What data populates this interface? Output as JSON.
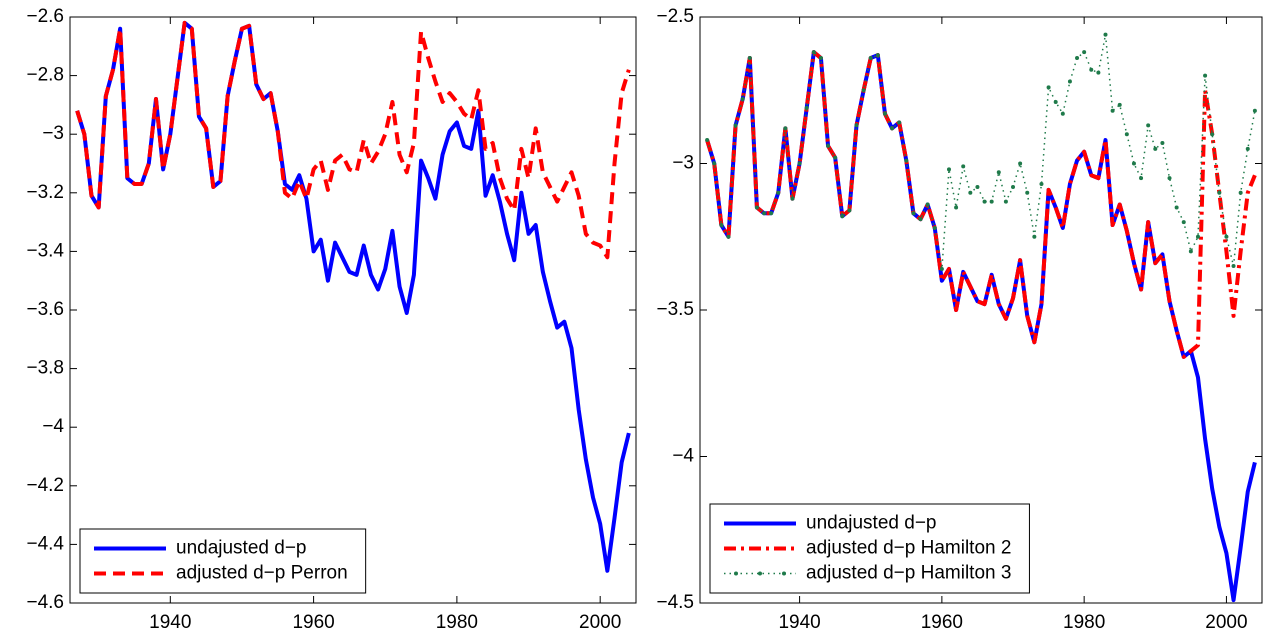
{
  "chart_data": [
    {
      "type": "line",
      "x": [
        1927,
        1928,
        1929,
        1930,
        1931,
        1932,
        1933,
        1934,
        1935,
        1936,
        1937,
        1938,
        1939,
        1940,
        1941,
        1942,
        1943,
        1944,
        1945,
        1946,
        1947,
        1948,
        1949,
        1950,
        1951,
        1952,
        1953,
        1954,
        1955,
        1956,
        1957,
        1958,
        1959,
        1960,
        1961,
        1962,
        1963,
        1964,
        1965,
        1966,
        1967,
        1968,
        1969,
        1970,
        1971,
        1972,
        1973,
        1974,
        1975,
        1976,
        1977,
        1978,
        1979,
        1980,
        1981,
        1982,
        1983,
        1984,
        1985,
        1986,
        1987,
        1988,
        1989,
        1990,
        1991,
        1992,
        1993,
        1994,
        1995,
        1996,
        1997,
        1998,
        1999,
        2000,
        2001,
        2002,
        2003,
        2004
      ],
      "xlim": [
        1926,
        2005
      ],
      "xticks": [
        1940,
        1960,
        1980,
        2000
      ],
      "ylim": [
        -4.6,
        -2.6
      ],
      "yticks": [
        {
          "value": -2.6,
          "label": "−2.6"
        },
        {
          "value": -2.8,
          "label": "−2.8"
        },
        {
          "value": -3,
          "label": "−3"
        },
        {
          "value": -3.2,
          "label": "−3.2"
        },
        {
          "value": -3.4,
          "label": "−3.4"
        },
        {
          "value": -3.6,
          "label": "−3.6"
        },
        {
          "value": -3.8,
          "label": "−3.8"
        },
        {
          "value": -4,
          "label": "−4"
        },
        {
          "value": -4.2,
          "label": "−4.2"
        },
        {
          "value": -4.4,
          "label": "−4.4"
        },
        {
          "value": -4.6,
          "label": "−4.6"
        }
      ],
      "legend": "lower left",
      "series": [
        {
          "name": "undajusted d−p",
          "color": "#0000ff",
          "linestyle": "solid",
          "values": [
            -2.92,
            -3.0,
            -3.21,
            -3.25,
            -2.87,
            -2.78,
            -2.64,
            -3.15,
            -3.17,
            -3.17,
            -3.1,
            -2.88,
            -3.12,
            -3.0,
            -2.81,
            -2.62,
            -2.64,
            -2.94,
            -2.98,
            -3.18,
            -3.16,
            -2.87,
            -2.75,
            -2.64,
            -2.63,
            -2.83,
            -2.88,
            -2.86,
            -2.99,
            -3.17,
            -3.19,
            -3.14,
            -3.22,
            -3.4,
            -3.36,
            -3.5,
            -3.37,
            -3.42,
            -3.47,
            -3.48,
            -3.38,
            -3.48,
            -3.53,
            -3.46,
            -3.33,
            -3.52,
            -3.61,
            -3.48,
            -3.09,
            -3.15,
            -3.22,
            -3.07,
            -2.99,
            -2.96,
            -3.04,
            -3.05,
            -2.92,
            -3.21,
            -3.14,
            -3.23,
            -3.34,
            -3.43,
            -3.2,
            -3.34,
            -3.31,
            -3.47,
            -3.57,
            -3.66,
            -3.64,
            -3.73,
            -3.94,
            -4.11,
            -4.24,
            -4.33,
            -4.49,
            -4.31,
            -4.12,
            -4.02
          ]
        },
        {
          "name": "adjusted d−p Perron",
          "color": "#ff0000",
          "linestyle": "dashed",
          "values": [
            -2.92,
            -3.0,
            -3.21,
            -3.25,
            -2.87,
            -2.78,
            -2.64,
            -3.15,
            -3.17,
            -3.17,
            -3.1,
            -2.88,
            -3.12,
            -3.0,
            -2.81,
            -2.62,
            -2.64,
            -2.94,
            -2.98,
            -3.18,
            -3.16,
            -2.87,
            -2.75,
            -2.64,
            -2.63,
            -2.83,
            -2.88,
            -2.86,
            -2.99,
            -3.2,
            -3.22,
            -3.16,
            -3.22,
            -3.12,
            -3.09,
            -3.19,
            -3.09,
            -3.07,
            -3.12,
            -3.13,
            -3.02,
            -3.1,
            -3.06,
            -3.0,
            -2.89,
            -3.07,
            -3.13,
            -3.03,
            -2.65,
            -2.74,
            -2.82,
            -2.89,
            -2.86,
            -2.89,
            -2.93,
            -2.95,
            -2.85,
            -3.05,
            -3.03,
            -3.15,
            -3.22,
            -3.26,
            -3.05,
            -3.15,
            -2.98,
            -3.13,
            -3.18,
            -3.23,
            -3.18,
            -3.13,
            -3.21,
            -3.34,
            -3.37,
            -3.38,
            -3.42,
            -3.1,
            -2.86,
            -2.78
          ]
        }
      ]
    },
    {
      "type": "line",
      "x": [
        1927,
        1928,
        1929,
        1930,
        1931,
        1932,
        1933,
        1934,
        1935,
        1936,
        1937,
        1938,
        1939,
        1940,
        1941,
        1942,
        1943,
        1944,
        1945,
        1946,
        1947,
        1948,
        1949,
        1950,
        1951,
        1952,
        1953,
        1954,
        1955,
        1956,
        1957,
        1958,
        1959,
        1960,
        1961,
        1962,
        1963,
        1964,
        1965,
        1966,
        1967,
        1968,
        1969,
        1970,
        1971,
        1972,
        1973,
        1974,
        1975,
        1976,
        1977,
        1978,
        1979,
        1980,
        1981,
        1982,
        1983,
        1984,
        1985,
        1986,
        1987,
        1988,
        1989,
        1990,
        1991,
        1992,
        1993,
        1994,
        1995,
        1996,
        1997,
        1998,
        1999,
        2000,
        2001,
        2002,
        2003,
        2004
      ],
      "xlim": [
        1926,
        2005
      ],
      "xticks": [
        1940,
        1960,
        1980,
        2000
      ],
      "ylim": [
        -4.5,
        -2.5
      ],
      "yticks": [
        {
          "value": -2.5,
          "label": "−2.5"
        },
        {
          "value": -3,
          "label": "−3"
        },
        {
          "value": -3.5,
          "label": "−3.5"
        },
        {
          "value": -4,
          "label": "−4"
        },
        {
          "value": -4.5,
          "label": "−4.5"
        }
      ],
      "legend": "lower left",
      "series": [
        {
          "name": "undajusted d−p",
          "color": "#0000ff",
          "linestyle": "solid",
          "values": [
            -2.92,
            -3.0,
            -3.21,
            -3.25,
            -2.87,
            -2.78,
            -2.64,
            -3.15,
            -3.17,
            -3.17,
            -3.1,
            -2.88,
            -3.12,
            -3.0,
            -2.81,
            -2.62,
            -2.64,
            -2.94,
            -2.98,
            -3.18,
            -3.16,
            -2.87,
            -2.75,
            -2.64,
            -2.63,
            -2.83,
            -2.88,
            -2.86,
            -2.99,
            -3.17,
            -3.19,
            -3.14,
            -3.22,
            -3.4,
            -3.36,
            -3.5,
            -3.37,
            -3.42,
            -3.47,
            -3.48,
            -3.38,
            -3.48,
            -3.53,
            -3.46,
            -3.33,
            -3.52,
            -3.61,
            -3.48,
            -3.09,
            -3.15,
            -3.22,
            -3.07,
            -2.99,
            -2.96,
            -3.04,
            -3.05,
            -2.92,
            -3.21,
            -3.14,
            -3.23,
            -3.34,
            -3.43,
            -3.2,
            -3.34,
            -3.31,
            -3.47,
            -3.57,
            -3.66,
            -3.64,
            -3.73,
            -3.94,
            -4.11,
            -4.24,
            -4.33,
            -4.49,
            -4.31,
            -4.12,
            -4.02
          ]
        },
        {
          "name": "adjusted d−p Hamilton 2",
          "color": "#ff0000",
          "linestyle": "dashdot",
          "values": [
            -2.92,
            -3.0,
            -3.21,
            -3.25,
            -2.87,
            -2.78,
            -2.64,
            -3.15,
            -3.17,
            -3.17,
            -3.1,
            -2.88,
            -3.12,
            -3.0,
            -2.81,
            -2.62,
            -2.64,
            -2.94,
            -2.98,
            -3.18,
            -3.16,
            -2.87,
            -2.75,
            -2.64,
            -2.63,
            -2.83,
            -2.88,
            -2.86,
            -2.99,
            -3.17,
            -3.19,
            -3.14,
            -3.22,
            -3.4,
            -3.36,
            -3.5,
            -3.37,
            -3.42,
            -3.47,
            -3.48,
            -3.38,
            -3.48,
            -3.53,
            -3.46,
            -3.33,
            -3.52,
            -3.61,
            -3.48,
            -3.09,
            -3.15,
            -3.22,
            -3.07,
            -2.99,
            -2.96,
            -3.04,
            -3.05,
            -2.92,
            -3.21,
            -3.14,
            -3.23,
            -3.34,
            -3.43,
            -3.2,
            -3.34,
            -3.31,
            -3.47,
            -3.57,
            -3.66,
            -3.64,
            -3.62,
            -2.75,
            -2.9,
            -3.1,
            -3.3,
            -3.52,
            -3.3,
            -3.1,
            -3.04
          ]
        },
        {
          "name": "adjusted d−p Hamilton 3",
          "color": "#1f7a4a",
          "linestyle": "dotted",
          "values": [
            -2.92,
            -3.0,
            -3.21,
            -3.25,
            -2.87,
            -2.78,
            -2.64,
            -3.15,
            -3.17,
            -3.17,
            -3.1,
            -2.88,
            -3.12,
            -3.0,
            -2.81,
            -2.62,
            -2.64,
            -2.94,
            -2.98,
            -3.18,
            -3.16,
            -2.87,
            -2.75,
            -2.64,
            -2.63,
            -2.83,
            -2.88,
            -2.86,
            -2.99,
            -3.17,
            -3.19,
            -3.14,
            -3.22,
            -3.36,
            -3.02,
            -3.15,
            -3.01,
            -3.1,
            -3.08,
            -3.13,
            -3.13,
            -3.03,
            -3.13,
            -3.08,
            -3.0,
            -3.1,
            -3.25,
            -3.07,
            -2.74,
            -2.79,
            -2.83,
            -2.72,
            -2.64,
            -2.62,
            -2.68,
            -2.69,
            -2.56,
            -2.82,
            -2.8,
            -2.9,
            -3.0,
            -3.05,
            -2.87,
            -2.95,
            -2.93,
            -3.05,
            -3.15,
            -3.2,
            -3.3,
            -3.25,
            -2.7,
            -2.9,
            -3.1,
            -3.25,
            -3.35,
            -3.1,
            -2.95,
            -2.82
          ]
        }
      ]
    }
  ]
}
